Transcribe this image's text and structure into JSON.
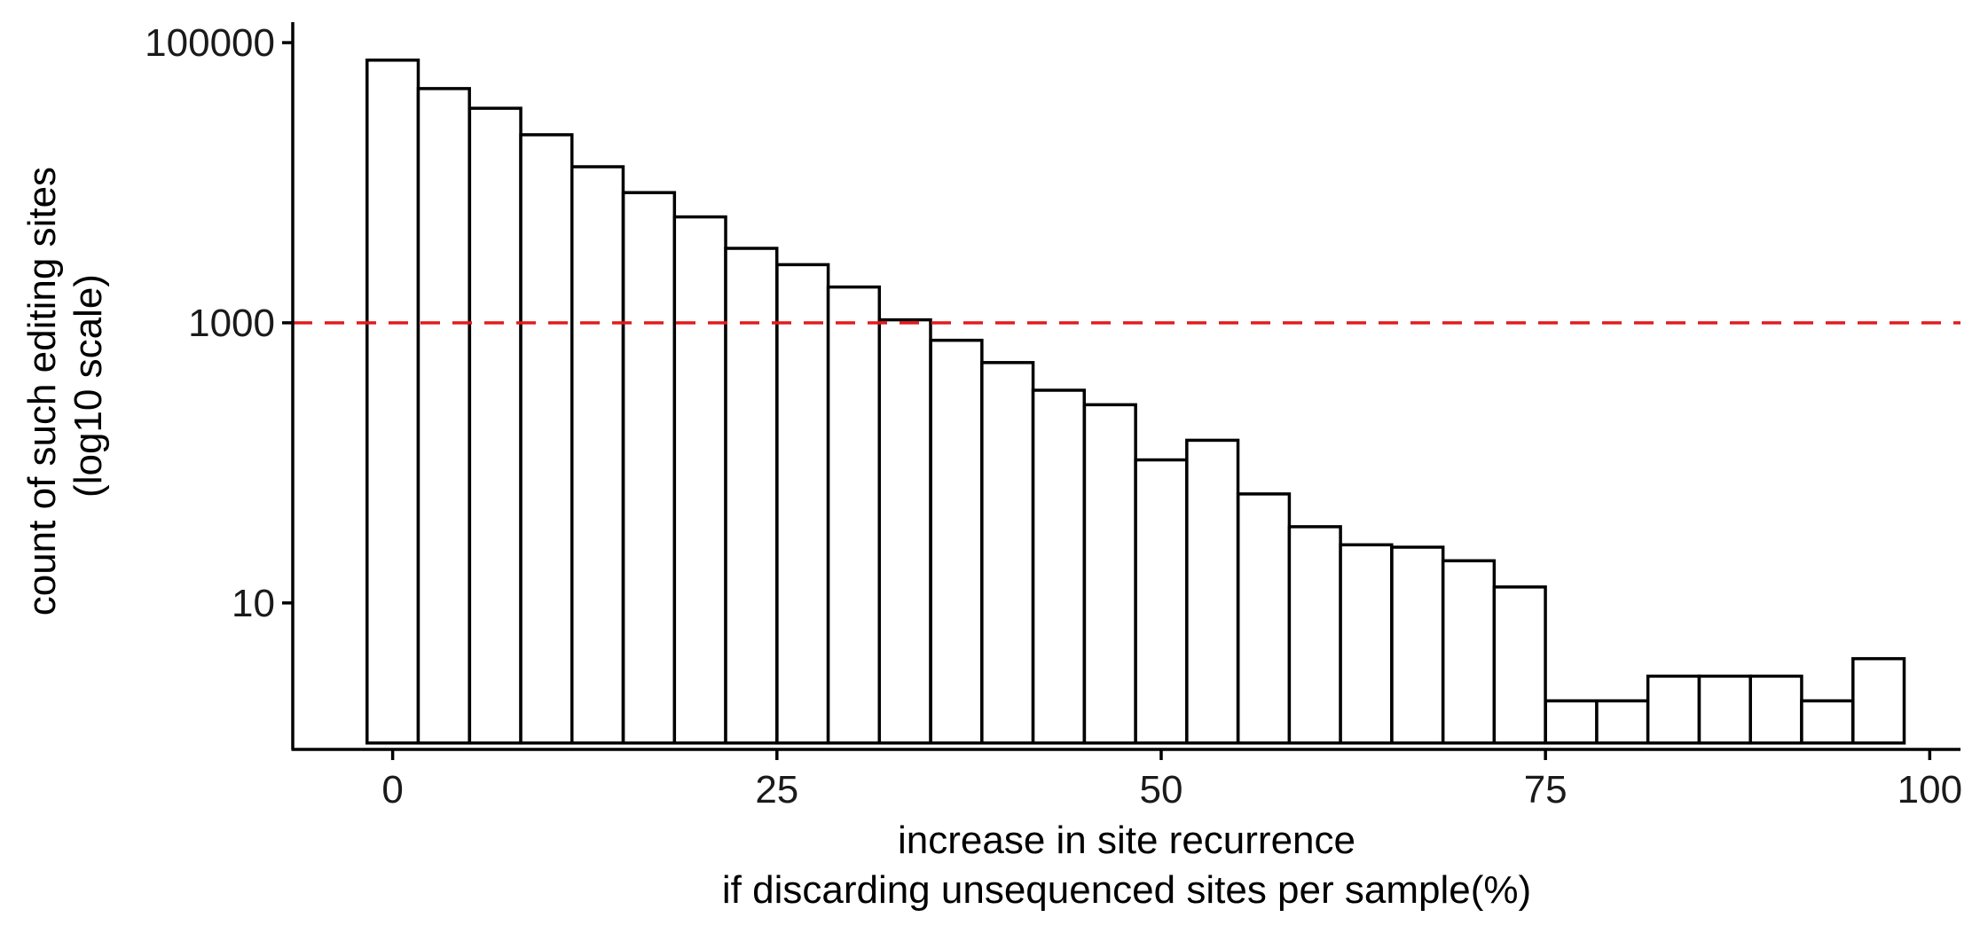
{
  "chart_data": {
    "type": "bar",
    "subtype": "histogram",
    "y_scale": "log10",
    "x": [
      0,
      3.33,
      6.67,
      10,
      13.33,
      16.67,
      20,
      23.33,
      26.67,
      30,
      33.33,
      36.67,
      40,
      43.33,
      46.67,
      50,
      53.33,
      56.67,
      60,
      63.33,
      66.67,
      70,
      73.33,
      76.67,
      80,
      83.33,
      86.67,
      90,
      93.33,
      96.67
    ],
    "values": [
      75000,
      47000,
      34000,
      22000,
      13000,
      8500,
      5700,
      3400,
      2600,
      1800,
      1050,
      750,
      520,
      330,
      260,
      105,
      145,
      60,
      35,
      26,
      25,
      20,
      13,
      2,
      2,
      3,
      3,
      3,
      2,
      4
    ],
    "bar_floor": 1,
    "xlim": [
      -6.5,
      102
    ],
    "ylim": [
      0.9,
      140000
    ],
    "x_ticks": [
      0,
      25,
      50,
      75,
      100
    ],
    "x_tick_labels": [
      "0",
      "25",
      "50",
      "75",
      "100"
    ],
    "y_ticks": [
      10,
      1000,
      100000
    ],
    "y_tick_labels": [
      "10",
      "1000",
      "100000"
    ],
    "reference_line": {
      "axis": "y",
      "value": 1000,
      "style": "dashed",
      "color": "#e41a1c"
    },
    "xlabel": [
      "increase in site recurrence",
      "if discarding unsequenced sites per sample(%)"
    ],
    "ylabel": [
      "count of such editing sites",
      "(log10 scale)"
    ],
    "grid": false,
    "bar_fill": "#ffffff",
    "bar_stroke": "#000000"
  }
}
